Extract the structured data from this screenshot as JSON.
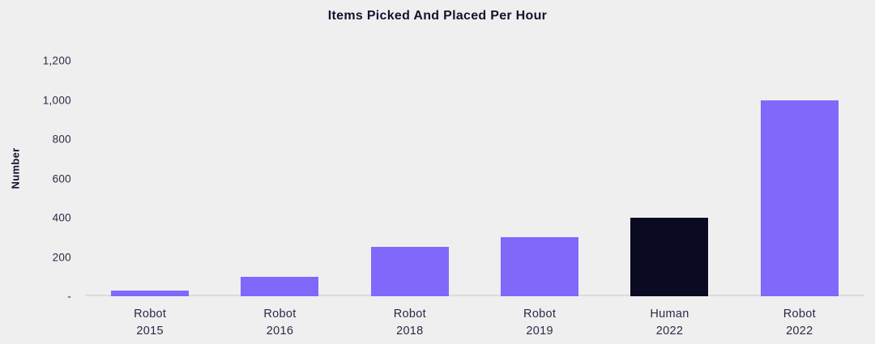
{
  "title": "Items Picked And Placed Per Hour",
  "colors": {
    "background": "#efefef",
    "bar_purple": "#8168fa",
    "bar_dark": "#0a0a23",
    "text_dark": "#16122e",
    "text_tick": "#2c2945",
    "axis_line": "#dcdcdc"
  },
  "chart_data": {
    "type": "bar",
    "title": "Items Picked And Placed Per Hour",
    "xlabel": "",
    "ylabel": "Number",
    "ylim": [
      0,
      1200
    ],
    "grid": false,
    "legend": false,
    "categories": [
      "Robot 2015",
      "Robot 2016",
      "Robot 2018",
      "Robot 2019",
      "Human 2022",
      "Robot 2022"
    ],
    "values": [
      30,
      100,
      250,
      300,
      400,
      1000
    ],
    "yticks": [
      {
        "label": "-",
        "value": 0
      },
      {
        "label": "200",
        "value": 200
      },
      {
        "label": "400",
        "value": 400
      },
      {
        "label": "600",
        "value": 600
      },
      {
        "label": "800",
        "value": 800
      },
      {
        "label": "1,000",
        "value": 1000
      },
      {
        "label": "1,200",
        "value": 1200
      }
    ],
    "bars": [
      {
        "line1": "Robot",
        "line2": "2015",
        "value": 30,
        "color": "#8168fa"
      },
      {
        "line1": "Robot",
        "line2": "2016",
        "value": 100,
        "color": "#8168fa"
      },
      {
        "line1": "Robot",
        "line2": "2018",
        "value": 250,
        "color": "#8168fa"
      },
      {
        "line1": "Robot",
        "line2": "2019",
        "value": 300,
        "color": "#8168fa"
      },
      {
        "line1": "Human",
        "line2": "2022",
        "value": 400,
        "color": "#0a0a23"
      },
      {
        "line1": "Robot",
        "line2": "2022",
        "value": 1000,
        "color": "#8168fa"
      }
    ]
  }
}
